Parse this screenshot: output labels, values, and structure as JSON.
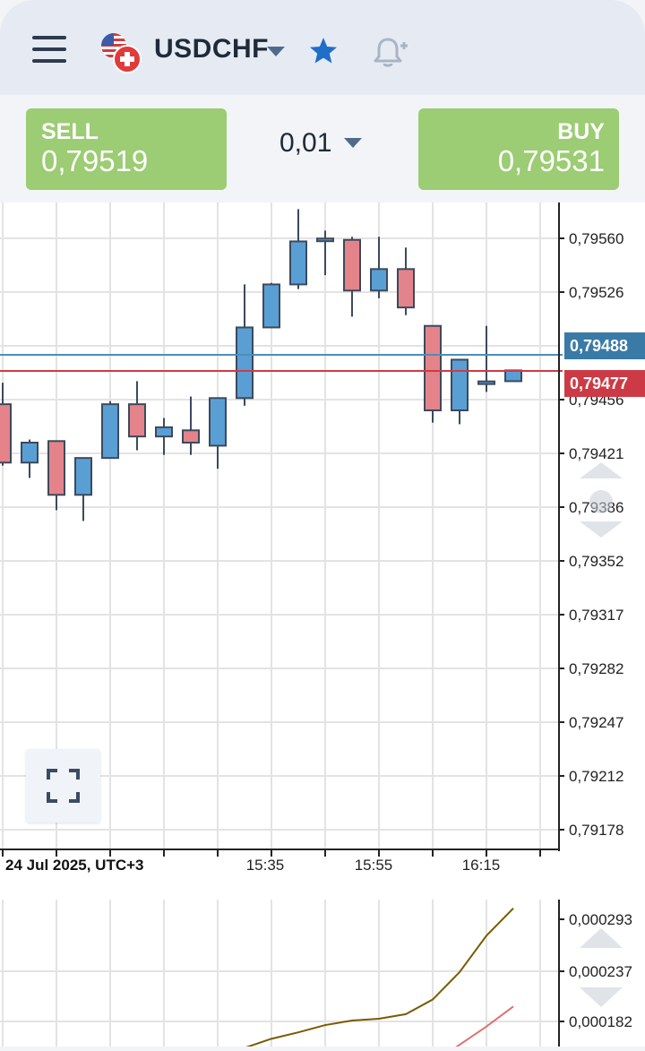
{
  "header": {
    "symbol": "USDCHF",
    "menu_icon": "hamburger-menu-icon",
    "flag_icon": "us-ch-flag-icon",
    "favorite_icon": "star-icon",
    "alert_icon": "bell-plus-icon"
  },
  "trade": {
    "sell_label": "SELL",
    "sell_price": "0,79519",
    "volume": "0,01",
    "buy_label": "BUY",
    "buy_price": "0,79531"
  },
  "colors": {
    "buy_green": "#9ccc73",
    "candle_up": "#5a9fd4",
    "candle_down": "#e5838a",
    "bid_line": "#4a8fb8",
    "ask_line": "#cc3b45",
    "macd_line": "#7a5a00",
    "signal_line": "#e07070"
  },
  "chart_data": {
    "type": "candlestick",
    "date_label": "24 Jul 2025, UTC+3",
    "x_ticks": [
      "15:35",
      "15:55",
      "16:15"
    ],
    "y_ticks": [
      "0,79560",
      "0,79526",
      "0,79456",
      "0,79421",
      "0,79386",
      "0,79352",
      "0,79317",
      "0,79282",
      "0,79247",
      "0,79212",
      "0,79178"
    ],
    "bid_marker": "0,79488",
    "ask_marker": "0,79477",
    "candles": [
      {
        "o": 0.79452,
        "h": 0.79466,
        "l": 0.79412,
        "c": 0.79414
      },
      {
        "o": 0.79414,
        "h": 0.79429,
        "l": 0.79404,
        "c": 0.79427
      },
      {
        "o": 0.79428,
        "h": 0.79428,
        "l": 0.79383,
        "c": 0.79393
      },
      {
        "o": 0.79393,
        "h": 0.79417,
        "l": 0.79376,
        "c": 0.79417
      },
      {
        "o": 0.79417,
        "h": 0.79454,
        "l": 0.79417,
        "c": 0.79452
      },
      {
        "o": 0.79452,
        "h": 0.79467,
        "l": 0.79422,
        "c": 0.79431
      },
      {
        "o": 0.79431,
        "h": 0.79443,
        "l": 0.79419,
        "c": 0.79437
      },
      {
        "o": 0.79435,
        "h": 0.79457,
        "l": 0.79419,
        "c": 0.79427
      },
      {
        "o": 0.79425,
        "h": 0.79456,
        "l": 0.7941,
        "c": 0.79456
      },
      {
        "o": 0.79456,
        "h": 0.7953,
        "l": 0.79451,
        "c": 0.79502
      },
      {
        "o": 0.79502,
        "h": 0.79531,
        "l": 0.79502,
        "c": 0.7953
      },
      {
        "o": 0.7953,
        "h": 0.79579,
        "l": 0.79527,
        "c": 0.79558
      },
      {
        "o": 0.79558,
        "h": 0.79565,
        "l": 0.79536,
        "c": 0.79559
      },
      {
        "o": 0.79559,
        "h": 0.79561,
        "l": 0.79509,
        "c": 0.79526
      },
      {
        "o": 0.79526,
        "h": 0.79561,
        "l": 0.79521,
        "c": 0.7954
      },
      {
        "o": 0.7954,
        "h": 0.79554,
        "l": 0.7951,
        "c": 0.79515
      },
      {
        "o": 0.79503,
        "h": 0.79503,
        "l": 0.7944,
        "c": 0.79448
      },
      {
        "o": 0.79448,
        "h": 0.79479,
        "l": 0.79439,
        "c": 0.79481
      },
      {
        "o": 0.79466,
        "h": 0.79503,
        "l": 0.7946,
        "c": 0.79466
      },
      {
        "o": 0.79467,
        "h": 0.79474,
        "l": 0.79467,
        "c": 0.79474
      }
    ],
    "indicator": {
      "y_ticks": [
        "0,000293",
        "0,000237",
        "0,000182"
      ],
      "macd": [
        0.00015,
        0.000153,
        0.000163,
        0.00017,
        0.000178,
        0.000183,
        0.000185,
        0.00019,
        0.000206,
        0.000236,
        0.000276,
        0.000306
      ],
      "signal": [
        0.00012,
        0.000125,
        0.00013,
        0.000135,
        0.00014,
        0.000145,
        0.00015,
        0.00016,
        0.00018,
        0.0002,
        0.000222
      ]
    }
  }
}
